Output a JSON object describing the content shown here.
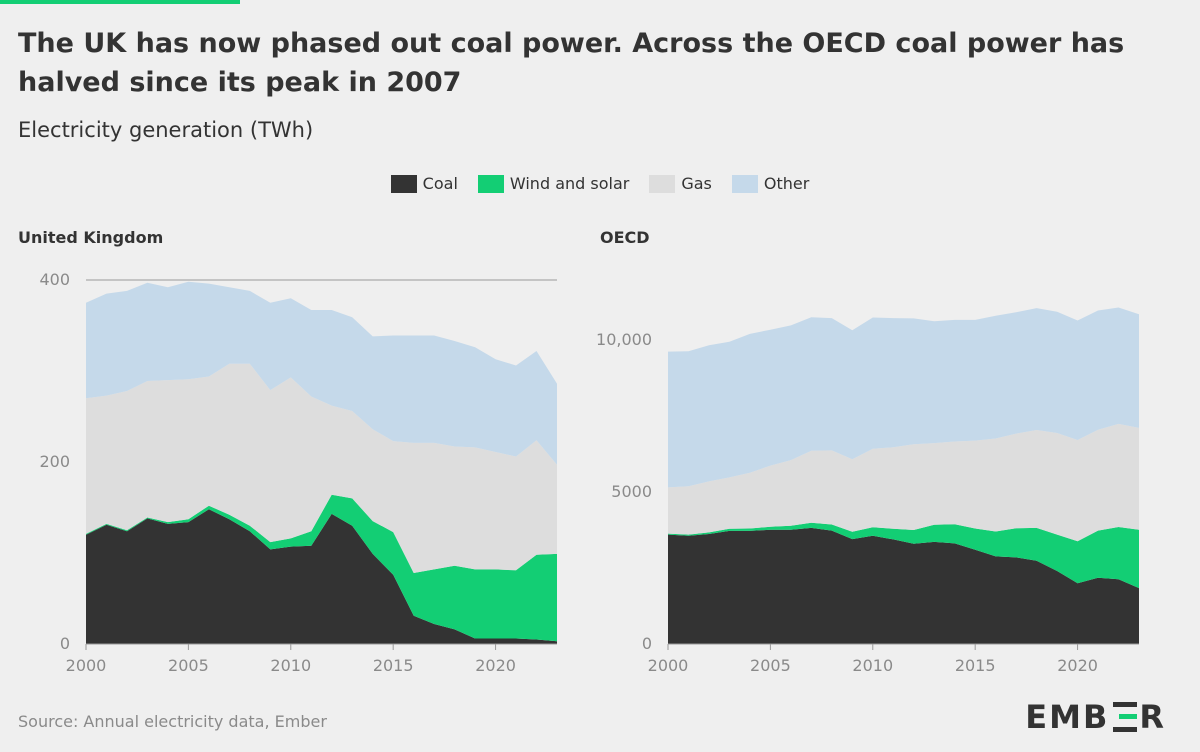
{
  "title": "The UK has now phased out coal power. Across the OECD coal power has halved since its peak in 2007",
  "subtitle": "Electricity generation (TWh)",
  "source": "Source: Annual electricity data, Ember",
  "logo": {
    "part1": "EMB",
    "part2": "R"
  },
  "legend": [
    {
      "label": "Coal",
      "color": "#333333"
    },
    {
      "label": "Wind and solar",
      "color": "#13ce74"
    },
    {
      "label": "Gas",
      "color": "#dddddd"
    },
    {
      "label": "Other",
      "color": "#c5d9ea"
    }
  ],
  "colors": {
    "coal": "#333333",
    "wind_solar": "#13ce74",
    "gas": "#dddddd",
    "other": "#c5d9ea",
    "background": "#efefef",
    "accent": "#13ce74"
  },
  "chart_data": [
    {
      "type": "area",
      "stacked": true,
      "title": "United Kingdom",
      "xlabel": "",
      "ylabel": "",
      "x": [
        2000,
        2001,
        2002,
        2003,
        2004,
        2005,
        2006,
        2007,
        2008,
        2009,
        2010,
        2011,
        2012,
        2013,
        2014,
        2015,
        2016,
        2017,
        2018,
        2019,
        2020,
        2021,
        2022,
        2023
      ],
      "xticks": [
        "2000",
        "2005",
        "2010",
        "2015",
        "2020"
      ],
      "yticks": [
        "0",
        "200",
        "400"
      ],
      "ylim": [
        0,
        400
      ],
      "xlim": [
        2000,
        2023
      ],
      "grid_top_line": true,
      "series": [
        {
          "name": "Coal",
          "values": [
            120,
            131,
            124,
            138,
            132,
            134,
            148,
            137,
            124,
            104,
            107,
            108,
            143,
            130,
            99,
            76,
            31,
            22,
            16,
            6,
            6,
            6,
            5,
            3
          ]
        },
        {
          "name": "Wind and solar",
          "values": [
            1,
            1,
            1,
            1,
            2,
            3,
            4,
            5,
            6,
            8,
            9,
            16,
            21,
            30,
            36,
            47,
            47,
            60,
            70,
            76,
            76,
            75,
            93,
            96
          ]
        },
        {
          "name": "Gas",
          "values": [
            149,
            141,
            153,
            150,
            156,
            154,
            142,
            166,
            178,
            167,
            177,
            148,
            98,
            96,
            101,
            100,
            143,
            139,
            131,
            134,
            129,
            125,
            126,
            98
          ]
        },
        {
          "name": "Other",
          "values": [
            105,
            112,
            110,
            108,
            102,
            107,
            102,
            84,
            80,
            96,
            87,
            95,
            105,
            103,
            102,
            116,
            118,
            118,
            116,
            110,
            102,
            100,
            98,
            89
          ]
        }
      ]
    },
    {
      "type": "area",
      "stacked": true,
      "title": "OECD",
      "xlabel": "",
      "ylabel": "",
      "x": [
        2000,
        2001,
        2002,
        2003,
        2004,
        2005,
        2006,
        2007,
        2008,
        2009,
        2010,
        2011,
        2012,
        2013,
        2014,
        2015,
        2016,
        2017,
        2018,
        2019,
        2020,
        2021,
        2022,
        2023
      ],
      "xticks": [
        "2000",
        "2005",
        "2010",
        "2015",
        "2020"
      ],
      "yticks": [
        "0",
        "5000",
        "10,000"
      ],
      "ylim": [
        0,
        10000
      ],
      "xlim": [
        2000,
        2023
      ],
      "grid_top_line": false,
      "series": [
        {
          "name": "Coal",
          "values": [
            3600,
            3560,
            3620,
            3720,
            3720,
            3760,
            3760,
            3820,
            3730,
            3450,
            3560,
            3440,
            3300,
            3360,
            3310,
            3100,
            2880,
            2850,
            2740,
            2400,
            2000,
            2180,
            2130,
            1840
          ]
        },
        {
          "name": "Wind and solar",
          "values": [
            30,
            40,
            50,
            70,
            80,
            100,
            130,
            170,
            200,
            240,
            280,
            350,
            450,
            560,
            630,
            700,
            820,
            960,
            1080,
            1200,
            1380,
            1550,
            1720,
            1920
          ]
        },
        {
          "name": "Gas",
          "values": [
            1520,
            1590,
            1680,
            1690,
            1830,
            2010,
            2160,
            2370,
            2440,
            2390,
            2580,
            2680,
            2820,
            2690,
            2720,
            2890,
            3060,
            3110,
            3220,
            3340,
            3330,
            3320,
            3390,
            3350
          ]
        },
        {
          "name": "Other",
          "values": [
            4470,
            4440,
            4480,
            4460,
            4570,
            4470,
            4430,
            4390,
            4350,
            4240,
            4320,
            4250,
            4140,
            4010,
            4000,
            3970,
            4040,
            3990,
            4010,
            3990,
            3930,
            3920,
            3830,
            3740
          ]
        }
      ]
    }
  ]
}
